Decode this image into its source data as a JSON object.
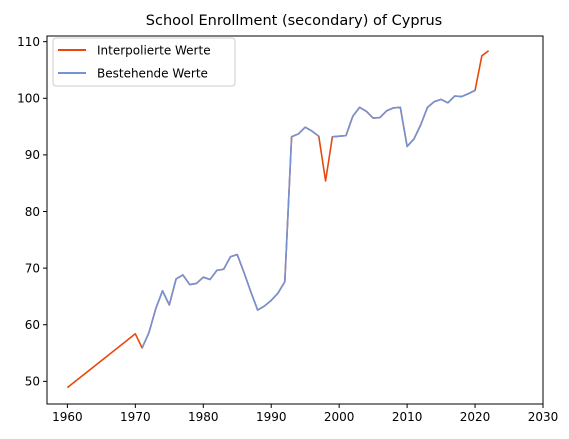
{
  "chart_data": {
    "type": "line",
    "title": "School Enrollment (secondary) of Cyprus",
    "xlabel": "",
    "ylabel": "",
    "xlim": [
      1957,
      2030
    ],
    "ylim": [
      46,
      111
    ],
    "x_ticks": [
      1960,
      1970,
      1980,
      1990,
      2000,
      2010,
      2020,
      2030
    ],
    "y_ticks": [
      50,
      60,
      70,
      80,
      90,
      100,
      110
    ],
    "grid": false,
    "legend_position": "top-left",
    "series": [
      {
        "name": "Interpolierte Werte",
        "color": "#e8470e",
        "points": [
          [
            1960,
            48.9
          ],
          [
            1970,
            58.4
          ],
          [
            1971,
            55.9
          ],
          [
            1972,
            58.6
          ],
          [
            1973,
            62.8
          ],
          [
            1974,
            66.0
          ],
          [
            1975,
            63.5
          ],
          [
            1976,
            68.1
          ],
          [
            1977,
            68.8
          ],
          [
            1978,
            67.1
          ],
          [
            1979,
            67.3
          ],
          [
            1980,
            68.4
          ],
          [
            1981,
            68.0
          ],
          [
            1982,
            69.6
          ],
          [
            1983,
            69.8
          ],
          [
            1984,
            72.0
          ],
          [
            1985,
            72.4
          ],
          [
            1986,
            69.2
          ],
          [
            1987,
            65.8
          ],
          [
            1988,
            62.6
          ],
          [
            1989,
            63.3
          ],
          [
            1990,
            64.3
          ],
          [
            1991,
            65.6
          ],
          [
            1992,
            67.6
          ],
          [
            1993,
            93.2
          ],
          [
            1994,
            93.7
          ],
          [
            1995,
            94.9
          ],
          [
            1996,
            94.2
          ],
          [
            1997,
            93.3
          ],
          [
            1998,
            85.4
          ],
          [
            1999,
            93.2
          ],
          [
            2000,
            93.3
          ],
          [
            2001,
            93.4
          ],
          [
            2002,
            96.8
          ],
          [
            2003,
            98.4
          ],
          [
            2004,
            97.7
          ],
          [
            2005,
            96.5
          ],
          [
            2006,
            96.6
          ],
          [
            2007,
            97.8
          ],
          [
            2008,
            98.3
          ],
          [
            2009,
            98.4
          ],
          [
            2010,
            91.5
          ],
          [
            2011,
            92.8
          ],
          [
            2012,
            95.3
          ],
          [
            2013,
            98.4
          ],
          [
            2014,
            99.4
          ],
          [
            2015,
            99.8
          ],
          [
            2016,
            99.2
          ],
          [
            2017,
            100.4
          ],
          [
            2018,
            100.3
          ],
          [
            2019,
            100.8
          ],
          [
            2020,
            101.4
          ],
          [
            2021,
            107.5
          ],
          [
            2022,
            108.4
          ]
        ]
      },
      {
        "name": "Bestehende Werte",
        "color": "#7393d6",
        "segments": [
          [
            [
              1971,
              55.9
            ],
            [
              1972,
              58.6
            ],
            [
              1973,
              62.8
            ],
            [
              1974,
              66.0
            ],
            [
              1975,
              63.5
            ],
            [
              1976,
              68.1
            ],
            [
              1977,
              68.8
            ],
            [
              1978,
              67.1
            ],
            [
              1979,
              67.3
            ],
            [
              1980,
              68.4
            ],
            [
              1981,
              68.0
            ],
            [
              1982,
              69.6
            ],
            [
              1983,
              69.8
            ],
            [
              1984,
              72.0
            ],
            [
              1985,
              72.4
            ],
            [
              1986,
              69.2
            ],
            [
              1987,
              65.8
            ],
            [
              1988,
              62.6
            ],
            [
              1989,
              63.3
            ],
            [
              1990,
              64.3
            ],
            [
              1991,
              65.6
            ],
            [
              1992,
              67.6
            ],
            [
              1993,
              93.2
            ],
            [
              1994,
              93.7
            ],
            [
              1995,
              94.9
            ],
            [
              1996,
              94.2
            ],
            [
              1997,
              93.3
            ]
          ],
          [
            [
              1999,
              93.2
            ],
            [
              2000,
              93.3
            ],
            [
              2001,
              93.4
            ],
            [
              2002,
              96.8
            ],
            [
              2003,
              98.4
            ],
            [
              2004,
              97.7
            ],
            [
              2005,
              96.5
            ],
            [
              2006,
              96.6
            ],
            [
              2007,
              97.8
            ],
            [
              2008,
              98.3
            ],
            [
              2009,
              98.4
            ],
            [
              2010,
              91.5
            ],
            [
              2011,
              92.8
            ],
            [
              2012,
              95.3
            ],
            [
              2013,
              98.4
            ],
            [
              2014,
              99.4
            ],
            [
              2015,
              99.8
            ],
            [
              2016,
              99.2
            ],
            [
              2017,
              100.4
            ],
            [
              2018,
              100.3
            ],
            [
              2019,
              100.8
            ],
            [
              2020,
              101.4
            ]
          ]
        ]
      }
    ]
  }
}
